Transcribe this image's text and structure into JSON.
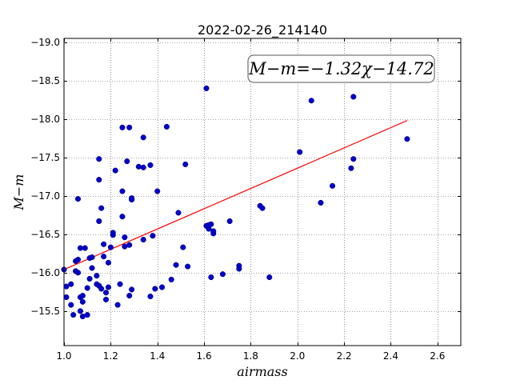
{
  "chart_data": {
    "type": "scatter",
    "title": "2022-02-26_214140",
    "xlabel": "airmass",
    "ylabel": "M−m",
    "xlim": [
      1.0,
      2.7
    ],
    "ylim": [
      -19.05,
      -15.05
    ],
    "ylim_note": "inverted",
    "x_ticks": [
      1.0,
      1.2,
      1.4,
      1.6,
      1.8,
      2.0,
      2.2,
      2.4,
      2.6
    ],
    "x_tick_labels": [
      "1.0",
      "1.2",
      "1.4",
      "1.6",
      "1.8",
      "2.0",
      "2.2",
      "2.4",
      "2.6"
    ],
    "y_ticks": [
      -15.5,
      -16.0,
      -16.5,
      -17.0,
      -17.5,
      -18.0,
      -18.5,
      -19.0
    ],
    "y_tick_labels": [
      "−15.5",
      "−16.0",
      "−16.5",
      "−17.0",
      "−17.5",
      "−18.0",
      "−18.5",
      "−19.0"
    ],
    "grid": true,
    "annotation": "M−m=−1.32χ−14.72",
    "point_color": "#0000cc",
    "fit_color": "#ff0000",
    "fit": {
      "slope": -1.32,
      "intercept": -14.72,
      "x_start": 1.0,
      "x_end": 2.47
    },
    "points": [
      [
        1.0,
        -16.04
      ],
      [
        1.01,
        -15.68
      ],
      [
        1.01,
        -15.82
      ],
      [
        1.03,
        -15.58
      ],
      [
        1.03,
        -15.85
      ],
      [
        1.04,
        -15.45
      ],
      [
        1.05,
        -16.15
      ],
      [
        1.05,
        -16.02
      ],
      [
        1.06,
        -16.17
      ],
      [
        1.06,
        -16.0
      ],
      [
        1.07,
        -15.5
      ],
      [
        1.07,
        -15.68
      ],
      [
        1.08,
        -15.43
      ],
      [
        1.08,
        -15.62
      ],
      [
        1.08,
        -15.7
      ],
      [
        1.07,
        -16.32
      ],
      [
        1.09,
        -16.32
      ],
      [
        1.1,
        -15.8
      ],
      [
        1.1,
        -15.45
      ],
      [
        1.11,
        -15.92
      ],
      [
        1.11,
        -16.19
      ],
      [
        1.12,
        -16.06
      ],
      [
        1.12,
        -16.2
      ],
      [
        1.14,
        -15.85
      ],
      [
        1.14,
        -15.96
      ],
      [
        1.15,
        -15.83
      ],
      [
        1.16,
        -15.79
      ],
      [
        1.17,
        -16.21
      ],
      [
        1.17,
        -16.37
      ],
      [
        1.18,
        -15.74
      ],
      [
        1.18,
        -15.65
      ],
      [
        1.19,
        -16.13
      ],
      [
        1.19,
        -15.81
      ],
      [
        1.2,
        -16.33
      ],
      [
        1.21,
        -16.49
      ],
      [
        1.21,
        -16.52
      ],
      [
        1.22,
        -17.33
      ],
      [
        1.23,
        -15.58
      ],
      [
        1.24,
        -15.85
      ],
      [
        1.15,
        -16.67
      ],
      [
        1.16,
        -16.84
      ],
      [
        1.15,
        -17.21
      ],
      [
        1.15,
        -17.48
      ],
      [
        1.06,
        -16.96
      ],
      [
        1.25,
        -16.73
      ],
      [
        1.25,
        -17.06
      ],
      [
        1.26,
        -16.46
      ],
      [
        1.26,
        -16.34
      ],
      [
        1.27,
        -17.45
      ],
      [
        1.28,
        -15.7
      ],
      [
        1.28,
        -16.36
      ],
      [
        1.29,
        -15.78
      ],
      [
        1.29,
        -16.95
      ],
      [
        1.29,
        -16.97
      ],
      [
        1.25,
        -17.89
      ],
      [
        1.28,
        -17.89
      ],
      [
        1.32,
        -17.38
      ],
      [
        1.34,
        -17.37
      ],
      [
        1.34,
        -17.76
      ],
      [
        1.34,
        -16.43
      ],
      [
        1.37,
        -17.4
      ],
      [
        1.37,
        -15.69
      ],
      [
        1.38,
        -16.48
      ],
      [
        1.39,
        -15.79
      ],
      [
        1.4,
        -17.06
      ],
      [
        1.42,
        -15.81
      ],
      [
        1.44,
        -17.9
      ],
      [
        1.46,
        -15.91
      ],
      [
        1.48,
        -16.1
      ],
      [
        1.49,
        -16.78
      ],
      [
        1.51,
        -16.33
      ],
      [
        1.52,
        -17.41
      ],
      [
        1.53,
        -16.08
      ],
      [
        1.61,
        -18.4
      ],
      [
        1.61,
        -16.61
      ],
      [
        1.62,
        -16.57
      ],
      [
        1.62,
        -16.62
      ],
      [
        1.63,
        -16.63
      ],
      [
        1.63,
        -15.94
      ],
      [
        1.64,
        -16.51
      ],
      [
        1.64,
        -16.54
      ],
      [
        1.68,
        -15.98
      ],
      [
        1.71,
        -16.67
      ],
      [
        1.75,
        -16.05
      ],
      [
        1.75,
        -16.09
      ],
      [
        1.84,
        -16.87
      ],
      [
        1.85,
        -16.84
      ],
      [
        1.88,
        -15.94
      ],
      [
        2.01,
        -17.57
      ],
      [
        2.06,
        -18.24
      ],
      [
        2.1,
        -16.91
      ],
      [
        2.15,
        -17.13
      ],
      [
        2.23,
        -17.36
      ],
      [
        2.24,
        -17.48
      ],
      [
        2.24,
        -18.29
      ],
      [
        2.47,
        -17.74
      ]
    ]
  }
}
